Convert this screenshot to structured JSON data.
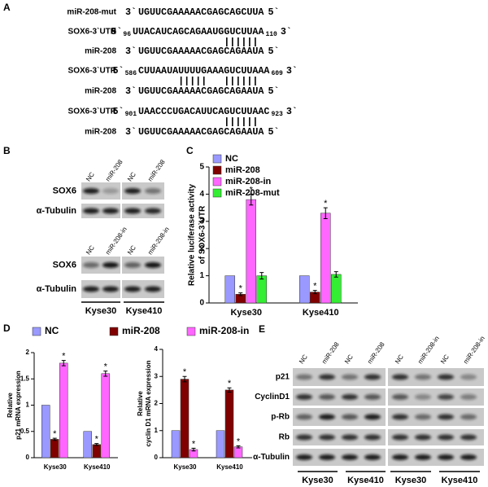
{
  "panel_labels": [
    "A",
    "B",
    "C",
    "D",
    "E"
  ],
  "sequences": {
    "rows": [
      {
        "name": "miR-208-mut",
        "lead": [
          {
            "text": "3`"
          }
        ],
        "seq": [
          {
            "text": "UGUUCGAAAAACGAG"
          },
          {
            "text": "CAG",
            "color": "#e00000"
          },
          {
            "text": "CU",
            "color": "#00c000"
          },
          {
            "text": "U",
            "color": "#e00000"
          },
          {
            "text": "A"
          }
        ],
        "tail": [
          {
            "text": "5`"
          }
        ]
      },
      {
        "name": "SOX6-3`UTR",
        "lead": [
          {
            "text": "5`"
          },
          {
            "text": "96",
            "sub": true
          }
        ],
        "seq": [
          {
            "text": "UUACAUCAGCAGAAUG"
          },
          {
            "text": "GUCUUA",
            "color": "#e00000"
          },
          {
            "text": "A"
          }
        ],
        "tail": [
          {
            "text": "110",
            "sub": true
          },
          {
            "text": "3`"
          }
        ]
      },
      {
        "name": "miR-208",
        "lead": [
          {
            "text": "3`"
          }
        ],
        "seq": [
          {
            "text": "UGUUCGAAAAACGAG"
          },
          {
            "text": "CAGAAU",
            "color": "#e00000"
          },
          {
            "text": "A"
          }
        ],
        "tail": [
          {
            "text": "5`"
          }
        ]
      },
      {
        "name": "SOX6-3`UTR",
        "lead": [
          {
            "text": "5`"
          },
          {
            "text": "586",
            "sub": true
          }
        ],
        "seq": [
          {
            "text": "CUUAAUA"
          },
          {
            "text": "UUUUG",
            "color": "#e00000"
          },
          {
            "text": "AAA"
          },
          {
            "text": "GUCUUA",
            "color": "#e00000"
          },
          {
            "text": "AA"
          }
        ],
        "tail": [
          {
            "text": "609",
            "sub": true
          },
          {
            "text": "3`"
          }
        ]
      },
      {
        "name": "miR-208",
        "lead": [
          {
            "text": "3`"
          }
        ],
        "seq": [
          {
            "text": "UGUUCGA"
          },
          {
            "text": "AAAAC",
            "color": "#e00000"
          },
          {
            "text": "GAG"
          },
          {
            "text": "CAGAAU",
            "color": "#e00000"
          },
          {
            "text": "A"
          }
        ],
        "tail": [
          {
            "text": "5`"
          }
        ]
      },
      {
        "name": "SOX6-3`UTR",
        "lead": [
          {
            "text": "5`"
          },
          {
            "text": "901",
            "sub": true
          }
        ],
        "seq": [
          {
            "text": "UAACCCUGACAUUCA"
          },
          {
            "text": "GUCUUA",
            "color": "#e00000"
          },
          {
            "text": "AC"
          }
        ],
        "tail": [
          {
            "text": "923",
            "sub": true
          },
          {
            "text": "3`"
          }
        ]
      },
      {
        "name": "miR-208",
        "lead": [
          {
            "text": "3`"
          }
        ],
        "seq": [
          {
            "text": "UGUUCGAAAAACGAG"
          },
          {
            "text": "CAGAAU",
            "color": "#e00000"
          },
          {
            "text": "A"
          }
        ],
        "tail": [
          {
            "text": "5`"
          }
        ]
      }
    ]
  },
  "blot_b": {
    "top": {
      "lanes": [
        "NC",
        "miR-208",
        "NC",
        "miR-208"
      ],
      "rows": [
        "SOX6",
        "α-Tubulin"
      ]
    },
    "bottom": {
      "lanes": [
        "NC",
        "miR-208-in",
        "NC",
        "miR-208-in"
      ],
      "rows": [
        "SOX6",
        "α-Tubulin"
      ]
    },
    "cell_lines": [
      "Kyse30",
      "Kyse410"
    ]
  },
  "blot_e": {
    "lanes": [
      "NC",
      "miR-208",
      "NC",
      "miR-208",
      "NC",
      "miR-208-in",
      "NC",
      "miR-208-in"
    ],
    "rows": [
      "p21",
      "CyclinD1",
      "p-Rb",
      "Rb",
      "α-Tubulin"
    ],
    "cell_lines": [
      "Kyse30",
      "Kyse410",
      "Kyse30",
      "Kyse410"
    ]
  },
  "chart_data": [
    {
      "type": "bar",
      "ylabel": [
        "Relative luciferase activity",
        "of SOX6-3`UTR"
      ],
      "categories": [
        "Kyse30",
        "Kyse410"
      ],
      "series": [
        {
          "name": "NC",
          "color": "#9999ff",
          "values": [
            1,
            1
          ]
        },
        {
          "name": "miR-208",
          "color": "#800000",
          "values": [
            0.32,
            0.4
          ],
          "errors": [
            0.05,
            0.06
          ],
          "annotations": [
            "*",
            "*"
          ]
        },
        {
          "name": "miR-208-in",
          "color": "#ff66ff",
          "values": [
            3.8,
            3.3
          ],
          "errors": [
            0.2,
            0.2
          ],
          "annotations": [
            "*",
            "*"
          ]
        },
        {
          "name": "miR-208-mut",
          "color": "#33ee33",
          "values": [
            1.0,
            1.05
          ],
          "errors": [
            0.12,
            0.1
          ]
        }
      ],
      "ylim": [
        0,
        5
      ],
      "yticks": [
        0,
        1,
        2,
        3,
        4,
        5
      ],
      "legend": "upper left"
    },
    {
      "type": "bar",
      "ylabel": [
        "Relative",
        "p21 mRNA expression"
      ],
      "categories": [
        "Kyse30",
        "Kyse410"
      ],
      "series": [
        {
          "name": "NC",
          "color": "#9999ff",
          "values": [
            1,
            0.5
          ]
        },
        {
          "name": "miR-208",
          "color": "#800000",
          "values": [
            0.35,
            0.25
          ],
          "errors": [
            0.02,
            0.02
          ],
          "annotations": [
            "*",
            "*"
          ]
        },
        {
          "name": "miR-208-in",
          "color": "#ff66ff",
          "values": [
            1.8,
            1.6
          ],
          "errors": [
            0.05,
            0.05
          ],
          "annotations": [
            "*",
            "*"
          ]
        }
      ],
      "ylim": [
        0,
        2
      ],
      "yticks": [
        0,
        0.5,
        1,
        1.5,
        2
      ],
      "legend": "top"
    },
    {
      "type": "bar",
      "ylabel": [
        "Relative",
        "cyclin D1 mRNA expression"
      ],
      "categories": [
        "Kyse30",
        "Kyse410"
      ],
      "series": [
        {
          "color": "#9999ff",
          "values": [
            1,
            1
          ]
        },
        {
          "color": "#800000",
          "values": [
            2.9,
            2.5
          ],
          "errors": [
            0.1,
            0.08
          ],
          "annotations": [
            "*",
            "*"
          ]
        },
        {
          "color": "#ff66ff",
          "values": [
            0.3,
            0.4
          ],
          "errors": [
            0.05,
            0.04
          ],
          "annotations": [
            "*",
            "*"
          ]
        }
      ],
      "ylim": [
        0,
        4
      ],
      "yticks": [
        0,
        1,
        2,
        3,
        4
      ]
    }
  ]
}
